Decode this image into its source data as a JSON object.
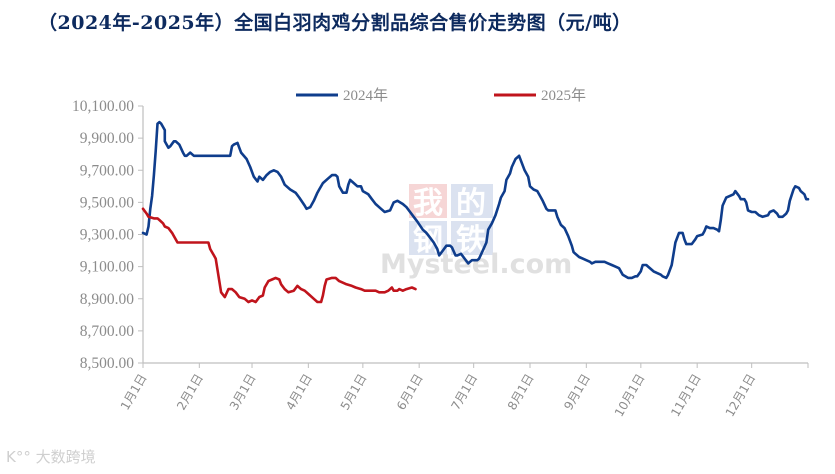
{
  "title": "（2024年-2025年）全国白羽肉鸡分割品综合售价走势图（元/吨）",
  "watermark": {
    "cn_top": [
      "我",
      "的"
    ],
    "cn_bottom": [
      "钢",
      "铁"
    ],
    "en": "Mysteel.com",
    "corner": "K°° 大数跨境"
  },
  "chart_data": {
    "type": "line",
    "title": "（2024年-2025年）全国白羽肉鸡分割品综合售价走势图（元/吨）",
    "xlabel": "",
    "ylabel": "元/吨",
    "ylim": [
      8500,
      10100
    ],
    "yticks": [
      10100,
      9900,
      9700,
      9500,
      9300,
      9100,
      8900,
      8700,
      8500
    ],
    "ytick_labels": [
      "10,100.00",
      "9,900.00",
      "9,700.00",
      "9,500.00",
      "9,300.00",
      "9,100.00",
      "8,900.00",
      "8,700.00",
      "8,500.00"
    ],
    "xtick_labels": [
      "1月1日",
      "2月1日",
      "3月1日",
      "4月1日",
      "5月1日",
      "6月1日",
      "7月1日",
      "8月1日",
      "9月1日",
      "10月1日",
      "11月1日",
      "12月1日"
    ],
    "xtick_days": [
      0,
      31,
      60,
      91,
      121,
      152,
      182,
      213,
      244,
      274,
      305,
      335,
      366
    ],
    "grid": false,
    "legend_position": "top",
    "x_unit": "day of year",
    "series": [
      {
        "name": "2024年",
        "color": "#0f3d8c",
        "points": [
          [
            0,
            9310
          ],
          [
            2,
            9300
          ],
          [
            3,
            9350
          ],
          [
            4,
            9460
          ],
          [
            5,
            9540
          ],
          [
            6,
            9670
          ],
          [
            7,
            9820
          ],
          [
            8,
            9990
          ],
          [
            9,
            10000
          ],
          [
            10,
            9990
          ],
          [
            12,
            9950
          ],
          [
            12,
            9880
          ],
          [
            14,
            9840
          ],
          [
            15,
            9850
          ],
          [
            17,
            9880
          ],
          [
            18,
            9880
          ],
          [
            20,
            9860
          ],
          [
            22,
            9810
          ],
          [
            23,
            9790
          ],
          [
            24,
            9790
          ],
          [
            26,
            9810
          ],
          [
            28,
            9790
          ],
          [
            29,
            9790
          ],
          [
            48,
            9790
          ],
          [
            49,
            9850
          ],
          [
            50,
            9860
          ],
          [
            52,
            9870
          ],
          [
            53,
            9840
          ],
          [
            54,
            9810
          ],
          [
            57,
            9770
          ],
          [
            59,
            9720
          ],
          [
            61,
            9660
          ],
          [
            63,
            9630
          ],
          [
            64,
            9660
          ],
          [
            66,
            9640
          ],
          [
            68,
            9670
          ],
          [
            70,
            9690
          ],
          [
            72,
            9700
          ],
          [
            74,
            9690
          ],
          [
            76,
            9660
          ],
          [
            78,
            9610
          ],
          [
            81,
            9580
          ],
          [
            84,
            9560
          ],
          [
            86,
            9530
          ],
          [
            89,
            9480
          ],
          [
            90,
            9460
          ],
          [
            92,
            9470
          ],
          [
            94,
            9510
          ],
          [
            96,
            9560
          ],
          [
            97,
            9580
          ],
          [
            99,
            9620
          ],
          [
            102,
            9650
          ],
          [
            104,
            9670
          ],
          [
            106,
            9670
          ],
          [
            107,
            9660
          ],
          [
            108,
            9600
          ],
          [
            110,
            9560
          ],
          [
            112,
            9560
          ],
          [
            113,
            9610
          ],
          [
            114,
            9640
          ],
          [
            116,
            9620
          ],
          [
            118,
            9600
          ],
          [
            120,
            9600
          ],
          [
            121,
            9570
          ],
          [
            124,
            9550
          ],
          [
            126,
            9520
          ],
          [
            128,
            9490
          ],
          [
            131,
            9460
          ],
          [
            133,
            9440
          ],
          [
            136,
            9450
          ],
          [
            138,
            9500
          ],
          [
            140,
            9510
          ],
          [
            143,
            9490
          ],
          [
            145,
            9470
          ],
          [
            147,
            9440
          ],
          [
            149,
            9410
          ],
          [
            151,
            9380
          ],
          [
            154,
            9330
          ],
          [
            156,
            9310
          ],
          [
            158,
            9280
          ],
          [
            160,
            9250
          ],
          [
            162,
            9210
          ],
          [
            163,
            9170
          ],
          [
            165,
            9200
          ],
          [
            167,
            9230
          ],
          [
            169,
            9230
          ],
          [
            170,
            9220
          ],
          [
            172,
            9170
          ],
          [
            173,
            9170
          ],
          [
            175,
            9180
          ],
          [
            177,
            9150
          ],
          [
            179,
            9120
          ],
          [
            181,
            9140
          ],
          [
            184,
            9140
          ],
          [
            185,
            9150
          ],
          [
            187,
            9200
          ],
          [
            189,
            9250
          ],
          [
            190,
            9330
          ],
          [
            192,
            9370
          ],
          [
            194,
            9420
          ],
          [
            196,
            9490
          ],
          [
            197,
            9530
          ],
          [
            199,
            9570
          ],
          [
            200,
            9640
          ],
          [
            202,
            9680
          ],
          [
            203,
            9720
          ],
          [
            205,
            9770
          ],
          [
            207,
            9790
          ],
          [
            208,
            9760
          ],
          [
            210,
            9700
          ],
          [
            212,
            9660
          ],
          [
            213,
            9600
          ],
          [
            215,
            9580
          ],
          [
            217,
            9570
          ],
          [
            218,
            9550
          ],
          [
            220,
            9510
          ],
          [
            222,
            9460
          ],
          [
            223,
            9450
          ],
          [
            225,
            9450
          ],
          [
            227,
            9450
          ],
          [
            228,
            9410
          ],
          [
            230,
            9360
          ],
          [
            232,
            9340
          ],
          [
            234,
            9290
          ],
          [
            236,
            9230
          ],
          [
            237,
            9190
          ],
          [
            240,
            9160
          ],
          [
            242,
            9150
          ],
          [
            244,
            9140
          ],
          [
            246,
            9130
          ],
          [
            247,
            9120
          ],
          [
            249,
            9130
          ],
          [
            251,
            9130
          ],
          [
            254,
            9130
          ],
          [
            256,
            9120
          ],
          [
            258,
            9110
          ],
          [
            260,
            9100
          ],
          [
            262,
            9090
          ],
          [
            264,
            9050
          ],
          [
            267,
            9030
          ],
          [
            269,
            9030
          ],
          [
            271,
            9040
          ],
          [
            272,
            9040
          ],
          [
            274,
            9070
          ],
          [
            275,
            9110
          ],
          [
            277,
            9110
          ],
          [
            278,
            9100
          ],
          [
            281,
            9070
          ],
          [
            283,
            9060
          ],
          [
            285,
            9050
          ],
          [
            286,
            9040
          ],
          [
            288,
            9030
          ],
          [
            289,
            9050
          ],
          [
            291,
            9110
          ],
          [
            293,
            9250
          ],
          [
            295,
            9310
          ],
          [
            297,
            9310
          ],
          [
            298,
            9270
          ],
          [
            299,
            9240
          ],
          [
            301,
            9240
          ],
          [
            302,
            9240
          ],
          [
            304,
            9270
          ],
          [
            305,
            9290
          ],
          [
            308,
            9300
          ],
          [
            309,
            9320
          ],
          [
            310,
            9350
          ],
          [
            312,
            9340
          ],
          [
            314,
            9340
          ],
          [
            316,
            9330
          ],
          [
            317,
            9320
          ],
          [
            318,
            9390
          ],
          [
            319,
            9480
          ],
          [
            321,
            9530
          ],
          [
            323,
            9540
          ],
          [
            325,
            9550
          ],
          [
            326,
            9570
          ],
          [
            328,
            9540
          ],
          [
            329,
            9520
          ],
          [
            331,
            9520
          ],
          [
            332,
            9500
          ],
          [
            333,
            9450
          ],
          [
            335,
            9440
          ],
          [
            337,
            9440
          ],
          [
            339,
            9420
          ],
          [
            341,
            9410
          ],
          [
            344,
            9420
          ],
          [
            345,
            9440
          ],
          [
            347,
            9450
          ],
          [
            349,
            9430
          ],
          [
            350,
            9410
          ],
          [
            352,
            9410
          ],
          [
            354,
            9430
          ],
          [
            355,
            9450
          ],
          [
            356,
            9510
          ],
          [
            358,
            9580
          ],
          [
            359,
            9600
          ],
          [
            361,
            9590
          ],
          [
            362,
            9570
          ],
          [
            364,
            9550
          ],
          [
            365,
            9520
          ],
          [
            366,
            9520
          ]
        ]
      },
      {
        "name": "2025年",
        "color": "#c0141c",
        "points": [
          [
            0,
            9460
          ],
          [
            2,
            9430
          ],
          [
            3,
            9410
          ],
          [
            6,
            9400
          ],
          [
            8,
            9400
          ],
          [
            9,
            9390
          ],
          [
            11,
            9370
          ],
          [
            12,
            9350
          ],
          [
            14,
            9340
          ],
          [
            16,
            9310
          ],
          [
            17,
            9290
          ],
          [
            19,
            9250
          ],
          [
            29,
            9250
          ],
          [
            36,
            9250
          ],
          [
            37,
            9210
          ],
          [
            39,
            9170
          ],
          [
            40,
            9150
          ],
          [
            41,
            9080
          ],
          [
            42,
            9010
          ],
          [
            43,
            8940
          ],
          [
            45,
            8910
          ],
          [
            47,
            8960
          ],
          [
            49,
            8960
          ],
          [
            51,
            8940
          ],
          [
            53,
            8910
          ],
          [
            56,
            8900
          ],
          [
            58,
            8880
          ],
          [
            60,
            8890
          ],
          [
            62,
            8880
          ],
          [
            64,
            8910
          ],
          [
            66,
            8920
          ],
          [
            67,
            8970
          ],
          [
            69,
            9010
          ],
          [
            71,
            9020
          ],
          [
            73,
            9030
          ],
          [
            75,
            9020
          ],
          [
            76,
            8990
          ],
          [
            78,
            8960
          ],
          [
            80,
            8940
          ],
          [
            83,
            8950
          ],
          [
            85,
            8980
          ],
          [
            87,
            8960
          ],
          [
            89,
            8950
          ],
          [
            91,
            8930
          ],
          [
            94,
            8900
          ],
          [
            96,
            8880
          ],
          [
            98,
            8880
          ],
          [
            99,
            8920
          ],
          [
            100,
            8980
          ],
          [
            101,
            9020
          ],
          [
            104,
            9030
          ],
          [
            106,
            9030
          ],
          [
            108,
            9010
          ],
          [
            110,
            9000
          ],
          [
            112,
            8990
          ],
          [
            115,
            8980
          ],
          [
            117,
            8970
          ],
          [
            120,
            8960
          ],
          [
            122,
            8950
          ],
          [
            125,
            8950
          ],
          [
            128,
            8950
          ],
          [
            130,
            8940
          ],
          [
            133,
            8940
          ],
          [
            135,
            8950
          ],
          [
            137,
            8970
          ],
          [
            138,
            8950
          ],
          [
            140,
            8950
          ],
          [
            141,
            8960
          ],
          [
            143,
            8950
          ],
          [
            145,
            8960
          ],
          [
            148,
            8970
          ],
          [
            150,
            8960
          ]
        ]
      }
    ]
  },
  "legend": [
    {
      "label": "2024年",
      "color": "#0f3d8c"
    },
    {
      "label": "2025年",
      "color": "#c0141c"
    }
  ]
}
